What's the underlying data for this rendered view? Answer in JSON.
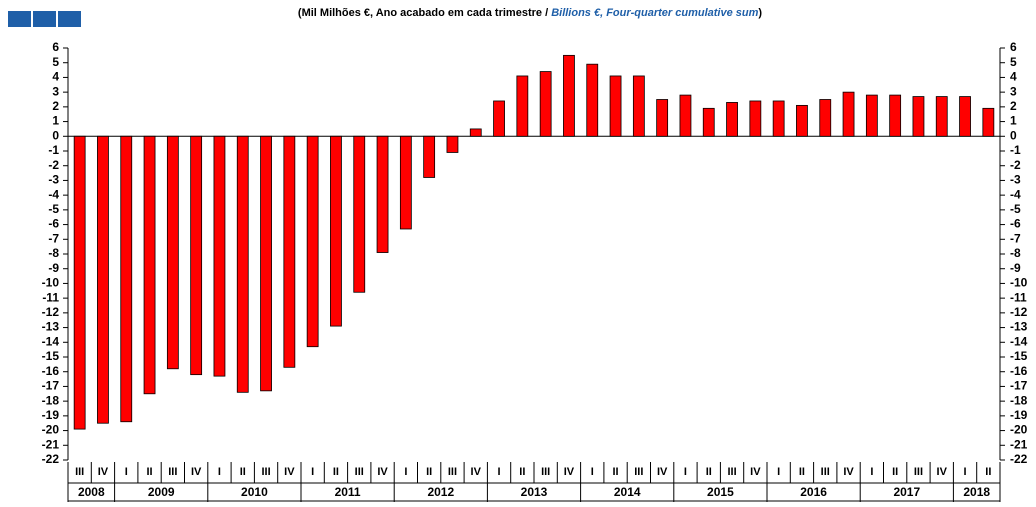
{
  "chart_data": {
    "type": "bar",
    "title_pt": "(Mil Milhões €, Ano acabado em cada trimestre / ",
    "title_en": "Billions €, Four-quarter cumulative sum",
    "title_close": ")",
    "categories": [
      "III",
      "IV",
      "I",
      "II",
      "III",
      "IV",
      "I",
      "II",
      "III",
      "IV",
      "I",
      "II",
      "III",
      "IV",
      "I",
      "II",
      "III",
      "IV",
      "I",
      "II",
      "III",
      "IV",
      "I",
      "II",
      "III",
      "IV",
      "I",
      "II",
      "III",
      "IV",
      "I",
      "II",
      "III",
      "IV",
      "I",
      "II",
      "III",
      "IV",
      "I",
      "II"
    ],
    "years": [
      "2008",
      "2009",
      "2010",
      "2011",
      "2012",
      "2013",
      "2014",
      "2015",
      "2016",
      "2017",
      "2018"
    ],
    "values": [
      -19.9,
      -19.5,
      -19.4,
      -17.5,
      -15.8,
      -16.2,
      -16.3,
      -17.4,
      -17.3,
      -15.7,
      -14.3,
      -12.9,
      -10.6,
      -7.9,
      -6.3,
      -2.8,
      -1.1,
      0.5,
      2.4,
      4.1,
      4.4,
      5.5,
      4.9,
      4.1,
      4.1,
      2.5,
      2.8,
      1.9,
      2.3,
      2.4,
      2.4,
      2.1,
      2.5,
      3.0,
      2.8,
      2.8,
      2.7,
      2.7,
      2.7,
      1.9
    ],
    "color": "#ff0000",
    "ylim": [
      -22,
      6
    ],
    "yticks": [
      6,
      5,
      4,
      3,
      2,
      1,
      0,
      -1,
      -2,
      -3,
      -4,
      -5,
      -6,
      -7,
      -8,
      -9,
      -10,
      -11,
      -12,
      -13,
      -14,
      -15,
      -16,
      -17,
      -18,
      -19,
      -20,
      -21,
      -22
    ],
    "grid": false
  }
}
